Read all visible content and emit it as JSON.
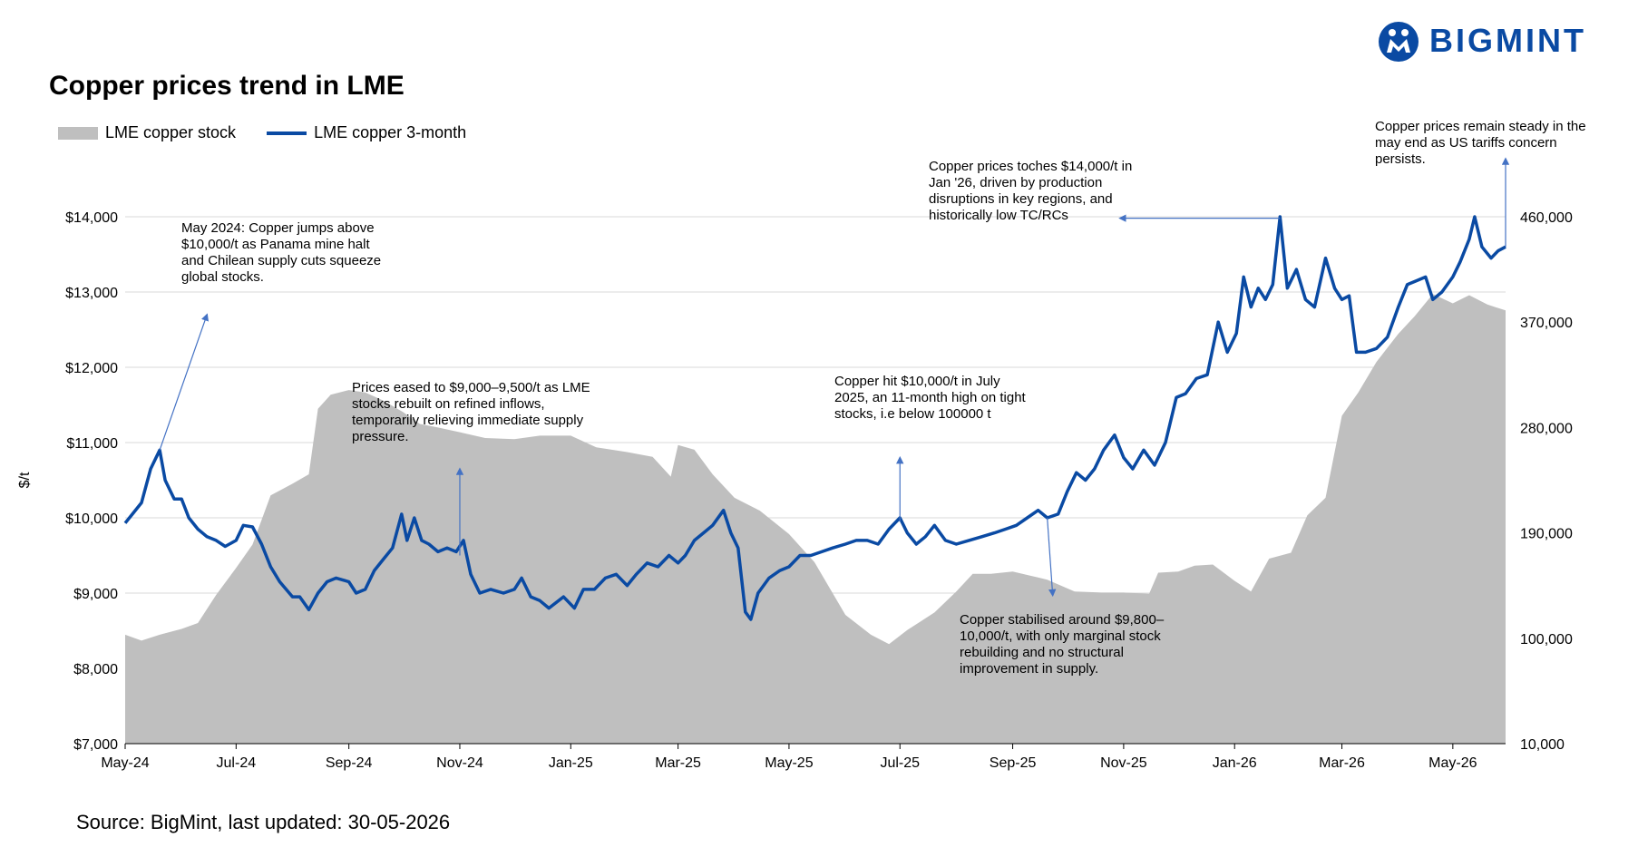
{
  "brand": {
    "name": "BIGMINT",
    "color": "#0a4aa3"
  },
  "title": "Copper prices trend in LME",
  "source": "Source: BigMint, last updated: 30-05-2026",
  "colors": {
    "line": "#0a4aa3",
    "area": "#bfbfbf",
    "grid": "#d9d9d9",
    "arrow": "#4472c4"
  },
  "chart_data": {
    "type": "line",
    "title": "Copper prices trend in LME",
    "ylabel": "$/t",
    "legend_position": "top-left",
    "grid": true,
    "x_ticks": [
      "May-24",
      "Jul-24",
      "Sep-24",
      "Nov-24",
      "Jan-25",
      "Mar-25",
      "May-25",
      "Jul-25",
      "Sep-25",
      "Nov-25",
      "Jan-26",
      "Mar-26",
      "May-26"
    ],
    "ylim_left": [
      7000,
      14000
    ],
    "y_ticks_left": [
      "$7,000",
      "$8,000",
      "$9,000",
      "$10,000",
      "$11,000",
      "$12,000",
      "$13,000",
      "$14,000"
    ],
    "ylim_right": [
      10000,
      460000
    ],
    "y_ticks_right": [
      "10,000",
      "100,000",
      "190,000",
      "280,000",
      "370,000",
      "460,000"
    ],
    "series": [
      {
        "name": "LME copper stock",
        "kind": "area",
        "axis": "right",
        "points": [
          [
            "2024-05-01",
            103000
          ],
          [
            "2024-05-10",
            98000
          ],
          [
            "2024-05-20",
            103000
          ],
          [
            "2024-06-01",
            108000
          ],
          [
            "2024-06-10",
            113000
          ],
          [
            "2024-06-20",
            137000
          ],
          [
            "2024-07-01",
            160000
          ],
          [
            "2024-07-10",
            180000
          ],
          [
            "2024-07-20",
            222000
          ],
          [
            "2024-08-01",
            232000
          ],
          [
            "2024-08-10",
            240000
          ],
          [
            "2024-08-15",
            296000
          ],
          [
            "2024-08-22",
            308000
          ],
          [
            "2024-09-01",
            312000
          ],
          [
            "2024-09-10",
            310000
          ],
          [
            "2024-09-20",
            303000
          ],
          [
            "2024-10-01",
            293000
          ],
          [
            "2024-10-10",
            283000
          ],
          [
            "2024-10-20",
            280000
          ],
          [
            "2024-11-01",
            276000
          ],
          [
            "2024-11-15",
            271000
          ],
          [
            "2024-12-01",
            270000
          ],
          [
            "2024-12-15",
            273000
          ],
          [
            "2025-01-01",
            273000
          ],
          [
            "2025-01-15",
            263000
          ],
          [
            "2025-02-01",
            259000
          ],
          [
            "2025-02-15",
            255000
          ],
          [
            "2025-02-25",
            238000
          ],
          [
            "2025-03-01",
            265000
          ],
          [
            "2025-03-10",
            261000
          ],
          [
            "2025-03-20",
            240000
          ],
          [
            "2025-04-01",
            220000
          ],
          [
            "2025-04-15",
            209000
          ],
          [
            "2025-05-01",
            189000
          ],
          [
            "2025-05-15",
            165000
          ],
          [
            "2025-06-01",
            120000
          ],
          [
            "2025-06-15",
            103000
          ],
          [
            "2025-06-25",
            95000
          ],
          [
            "2025-07-05",
            107000
          ],
          [
            "2025-07-20",
            122000
          ],
          [
            "2025-08-01",
            140000
          ],
          [
            "2025-08-10",
            155000
          ],
          [
            "2025-08-20",
            155000
          ],
          [
            "2025-09-01",
            157000
          ],
          [
            "2025-09-20",
            150000
          ],
          [
            "2025-10-05",
            140000
          ],
          [
            "2025-10-20",
            139000
          ],
          [
            "2025-11-01",
            139000
          ],
          [
            "2025-11-15",
            138000
          ],
          [
            "2025-11-20",
            156000
          ],
          [
            "2025-12-01",
            157000
          ],
          [
            "2025-12-10",
            162000
          ],
          [
            "2025-12-20",
            163000
          ],
          [
            "2026-01-01",
            149000
          ],
          [
            "2026-01-10",
            140000
          ],
          [
            "2026-01-20",
            168000
          ],
          [
            "2026-02-01",
            173000
          ],
          [
            "2026-02-10",
            205000
          ],
          [
            "2026-02-20",
            220000
          ],
          [
            "2026-03-01",
            290000
          ],
          [
            "2026-03-10",
            310000
          ],
          [
            "2026-03-20",
            336000
          ],
          [
            "2026-04-01",
            360000
          ],
          [
            "2026-04-10",
            375000
          ],
          [
            "2026-04-20",
            394000
          ],
          [
            "2026-05-01",
            386000
          ],
          [
            "2026-05-10",
            393000
          ],
          [
            "2026-05-20",
            385000
          ],
          [
            "2026-05-30",
            380000
          ]
        ]
      },
      {
        "name": "LME copper 3-month",
        "kind": "line",
        "axis": "left",
        "points": [
          [
            "2024-05-01",
            9930
          ],
          [
            "2024-05-05",
            10050
          ],
          [
            "2024-05-10",
            10200
          ],
          [
            "2024-05-15",
            10650
          ],
          [
            "2024-05-20",
            10900
          ],
          [
            "2024-05-23",
            10500
          ],
          [
            "2024-05-28",
            10250
          ],
          [
            "2024-06-01",
            10250
          ],
          [
            "2024-06-05",
            10000
          ],
          [
            "2024-06-10",
            9850
          ],
          [
            "2024-06-15",
            9750
          ],
          [
            "2024-06-20",
            9700
          ],
          [
            "2024-06-25",
            9620
          ],
          [
            "2024-07-01",
            9700
          ],
          [
            "2024-07-05",
            9900
          ],
          [
            "2024-07-10",
            9880
          ],
          [
            "2024-07-15",
            9650
          ],
          [
            "2024-07-20",
            9350
          ],
          [
            "2024-07-25",
            9150
          ],
          [
            "2024-08-01",
            8950
          ],
          [
            "2024-08-05",
            8950
          ],
          [
            "2024-08-10",
            8780
          ],
          [
            "2024-08-15",
            9000
          ],
          [
            "2024-08-20",
            9150
          ],
          [
            "2024-08-25",
            9200
          ],
          [
            "2024-09-01",
            9150
          ],
          [
            "2024-09-05",
            9000
          ],
          [
            "2024-09-10",
            9050
          ],
          [
            "2024-09-15",
            9300
          ],
          [
            "2024-09-20",
            9450
          ],
          [
            "2024-09-25",
            9600
          ],
          [
            "2024-09-30",
            10050
          ],
          [
            "2024-10-03",
            9700
          ],
          [
            "2024-10-07",
            10000
          ],
          [
            "2024-10-11",
            9700
          ],
          [
            "2024-10-15",
            9650
          ],
          [
            "2024-10-20",
            9550
          ],
          [
            "2024-10-25",
            9600
          ],
          [
            "2024-10-30",
            9550
          ],
          [
            "2024-11-03",
            9700
          ],
          [
            "2024-11-07",
            9250
          ],
          [
            "2024-11-12",
            9000
          ],
          [
            "2024-11-18",
            9050
          ],
          [
            "2024-11-25",
            9000
          ],
          [
            "2024-12-01",
            9050
          ],
          [
            "2024-12-05",
            9200
          ],
          [
            "2024-12-10",
            8950
          ],
          [
            "2024-12-15",
            8900
          ],
          [
            "2024-12-20",
            8800
          ],
          [
            "2024-12-28",
            8950
          ],
          [
            "2025-01-03",
            8800
          ],
          [
            "2025-01-08",
            9050
          ],
          [
            "2025-01-14",
            9050
          ],
          [
            "2025-01-20",
            9200
          ],
          [
            "2025-01-26",
            9250
          ],
          [
            "2025-02-01",
            9100
          ],
          [
            "2025-02-06",
            9250
          ],
          [
            "2025-02-12",
            9400
          ],
          [
            "2025-02-18",
            9350
          ],
          [
            "2025-02-24",
            9500
          ],
          [
            "2025-03-01",
            9400
          ],
          [
            "2025-03-05",
            9500
          ],
          [
            "2025-03-10",
            9700
          ],
          [
            "2025-03-15",
            9800
          ],
          [
            "2025-03-20",
            9900
          ],
          [
            "2025-03-26",
            10100
          ],
          [
            "2025-03-30",
            9800
          ],
          [
            "2025-04-03",
            9600
          ],
          [
            "2025-04-07",
            8750
          ],
          [
            "2025-04-10",
            8650
          ],
          [
            "2025-04-14",
            9000
          ],
          [
            "2025-04-20",
            9200
          ],
          [
            "2025-04-26",
            9300
          ],
          [
            "2025-05-01",
            9350
          ],
          [
            "2025-05-07",
            9500
          ],
          [
            "2025-05-13",
            9500
          ],
          [
            "2025-05-19",
            9550
          ],
          [
            "2025-05-25",
            9600
          ],
          [
            "2025-06-01",
            9650
          ],
          [
            "2025-06-07",
            9700
          ],
          [
            "2025-06-13",
            9700
          ],
          [
            "2025-06-19",
            9650
          ],
          [
            "2025-06-25",
            9850
          ],
          [
            "2025-07-01",
            10000
          ],
          [
            "2025-07-05",
            9800
          ],
          [
            "2025-07-10",
            9650
          ],
          [
            "2025-07-15",
            9750
          ],
          [
            "2025-07-20",
            9900
          ],
          [
            "2025-07-26",
            9700
          ],
          [
            "2025-08-01",
            9650
          ],
          [
            "2025-08-08",
            9700
          ],
          [
            "2025-08-15",
            9750
          ],
          [
            "2025-08-22",
            9800
          ],
          [
            "2025-08-28",
            9850
          ],
          [
            "2025-09-03",
            9900
          ],
          [
            "2025-09-09",
            10000
          ],
          [
            "2025-09-15",
            10100
          ],
          [
            "2025-09-20",
            10000
          ],
          [
            "2025-09-26",
            10050
          ],
          [
            "2025-10-01",
            10350
          ],
          [
            "2025-10-06",
            10600
          ],
          [
            "2025-10-11",
            10500
          ],
          [
            "2025-10-16",
            10650
          ],
          [
            "2025-10-21",
            10900
          ],
          [
            "2025-10-27",
            11100
          ],
          [
            "2025-11-01",
            10800
          ],
          [
            "2025-11-06",
            10650
          ],
          [
            "2025-11-12",
            10900
          ],
          [
            "2025-11-18",
            10700
          ],
          [
            "2025-11-24",
            11000
          ],
          [
            "2025-11-30",
            11600
          ],
          [
            "2025-12-05",
            11650
          ],
          [
            "2025-12-11",
            11850
          ],
          [
            "2025-12-17",
            11900
          ],
          [
            "2025-12-23",
            12600
          ],
          [
            "2025-12-28",
            12200
          ],
          [
            "2026-01-02",
            12450
          ],
          [
            "2026-01-06",
            13200
          ],
          [
            "2026-01-10",
            12800
          ],
          [
            "2026-01-14",
            13050
          ],
          [
            "2026-01-18",
            12900
          ],
          [
            "2026-01-22",
            13100
          ],
          [
            "2026-01-26",
            14000
          ],
          [
            "2026-01-30",
            13050
          ],
          [
            "2026-02-04",
            13300
          ],
          [
            "2026-02-09",
            12900
          ],
          [
            "2026-02-14",
            12800
          ],
          [
            "2026-02-20",
            13450
          ],
          [
            "2026-02-25",
            13050
          ],
          [
            "2026-03-01",
            12900
          ],
          [
            "2026-03-05",
            12950
          ],
          [
            "2026-03-09",
            12200
          ],
          [
            "2026-03-14",
            12200
          ],
          [
            "2026-03-20",
            12250
          ],
          [
            "2026-03-26",
            12400
          ],
          [
            "2026-04-01",
            12800
          ],
          [
            "2026-04-06",
            13100
          ],
          [
            "2026-04-11",
            13150
          ],
          [
            "2026-04-16",
            13200
          ],
          [
            "2026-04-20",
            12900
          ],
          [
            "2026-04-25",
            13000
          ],
          [
            "2026-05-01",
            13200
          ],
          [
            "2026-05-05",
            13400
          ],
          [
            "2026-05-10",
            13700
          ],
          [
            "2026-05-13",
            14000
          ],
          [
            "2026-05-17",
            13600
          ],
          [
            "2026-05-22",
            13450
          ],
          [
            "2026-05-26",
            13550
          ],
          [
            "2026-05-30",
            13600
          ]
        ]
      }
    ],
    "annotations": [
      {
        "text": "May 2024: Copper jumps above $10,000/t as Panama mine halt and Chilean supply cuts squeeze global stocks.",
        "lines": [
          "May 2024: Copper jumps above",
          "$10,000/t as Panama mine halt",
          "and Chilean supply cuts squeeze",
          "global stocks."
        ],
        "point": [
          "2024-05-20",
          10900
        ],
        "arrow_to": [
          "2024-06-15",
          12700
        ]
      },
      {
        "text": "Prices eased to $9,000–9,500/t as LME stocks rebuilt on refined inflows, temporarily relieving immediate supply pressure.",
        "lines": [
          "Prices eased to $9,000–9,500/t as LME",
          "stocks rebuilt on refined inflows,",
          "temporarily relieving immediate supply",
          "pressure."
        ],
        "point": [
          "2024-11-01",
          9500
        ],
        "arrow_to": [
          "2024-11-01",
          10650
        ]
      },
      {
        "text": "Copper hit $10,000/t in July 2025, an 11-month high on tight stocks, i.e below 100000 t",
        "lines": [
          "Copper hit $10,000/t in July",
          "2025, an 11-month high on tight",
          "stocks, i.e below 100000 t"
        ],
        "point": [
          "2025-07-01",
          9950
        ],
        "arrow_to": [
          "2025-07-01",
          10800
        ]
      },
      {
        "text": "Copper prices toches $14,000/t in Jan '26, driven by production disruptions in key regions, and historically low TC/RCs",
        "lines": [
          "Copper prices toches $14,000/t in",
          "Jan '26, driven by production",
          "disruptions in key regions, and",
          "historically low TC/RCs"
        ],
        "point": [
          "2026-01-26",
          13980
        ],
        "arrow_to": [
          "2025-10-30",
          13980
        ]
      },
      {
        "text": "Copper stabilised around $9,800–10,000/t, with only marginal stock rebuilding and no structural improvement in supply.",
        "lines": [
          "Copper stabilised around $9,800–",
          "10,000/t, with only marginal stock",
          "rebuilding and no structural",
          "improvement in supply."
        ],
        "point": [
          "2025-09-20",
          10000
        ],
        "arrow_to": [
          "2025-09-23",
          8970
        ]
      },
      {
        "text": "Copper prices remain steady in the may end as US tariffs concern persists.",
        "lines": [
          "Copper prices remain steady in the",
          "may end as US tariffs concern",
          "persists."
        ],
        "point": [
          "2026-05-30",
          13600
        ],
        "arrow_to": [
          "2026-05-30",
          14770
        ]
      }
    ]
  }
}
